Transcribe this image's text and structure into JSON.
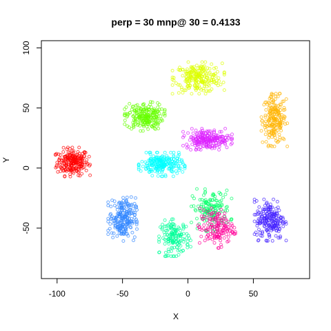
{
  "chart_data": {
    "type": "scatter",
    "title": "perp = 30 mnp@ 30 = 0.4133",
    "xlabel": "X",
    "ylabel": "Y",
    "xlim": [
      -112,
      93
    ],
    "ylim": [
      -92,
      106
    ],
    "x_ticks": [
      -100,
      -50,
      0,
      50
    ],
    "y_ticks": [
      -50,
      0,
      50,
      100
    ],
    "grid": false,
    "legend": "none",
    "clusters": [
      {
        "color": "#FF0000",
        "center": [
          -88,
          5
        ],
        "spread": [
          12,
          11
        ],
        "n": 220
      },
      {
        "color": "#FFB400",
        "center": [
          66,
          40
        ],
        "spread": [
          9,
          20
        ],
        "n": 200
      },
      {
        "color": "#DDFF00",
        "center": [
          8,
          75
        ],
        "spread": [
          18,
          12
        ],
        "n": 230
      },
      {
        "color": "#66FF00",
        "center": [
          -33,
          43
        ],
        "spread": [
          14,
          11
        ],
        "n": 220
      },
      {
        "color": "#00FF66",
        "center": [
          18,
          -35
        ],
        "spread": [
          14,
          16
        ],
        "n": 150
      },
      {
        "color": "#00FF99",
        "center": [
          -10,
          -58
        ],
        "spread": [
          11,
          14
        ],
        "n": 150
      },
      {
        "color": "#00FFFF",
        "center": [
          -20,
          3
        ],
        "spread": [
          16,
          9
        ],
        "n": 220
      },
      {
        "color": "#3388FF",
        "center": [
          -50,
          -42
        ],
        "spread": [
          10,
          17
        ],
        "n": 220
      },
      {
        "color": "#4422FF",
        "center": [
          63,
          -43
        ],
        "spread": [
          11,
          16
        ],
        "n": 200
      },
      {
        "color": "#DD22FF",
        "center": [
          15,
          24
        ],
        "spread": [
          17,
          8
        ],
        "n": 220
      },
      {
        "color": "#FF0099",
        "center": [
          22,
          -50
        ],
        "spread": [
          13,
          15
        ],
        "n": 150
      }
    ]
  }
}
